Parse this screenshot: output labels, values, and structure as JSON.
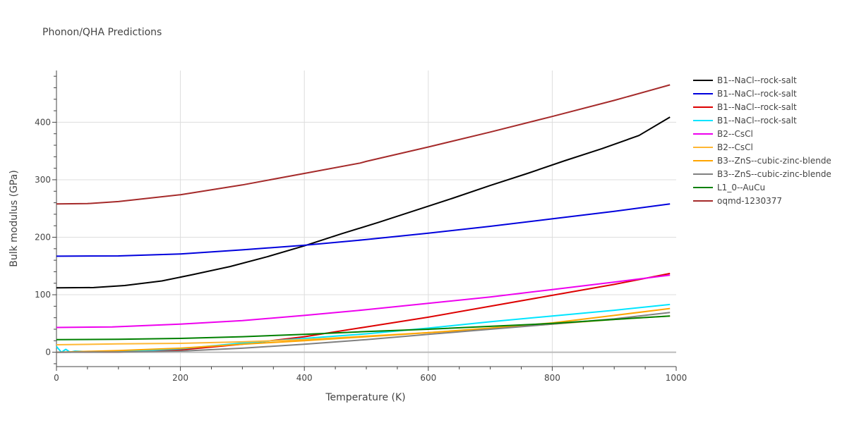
{
  "chart_data": {
    "type": "line",
    "title": "Phonon/QHA Predictions",
    "xlabel": "Temperature (K)",
    "ylabel": "Bulk modulus (GPa)",
    "xlim": [
      0,
      1000
    ],
    "ylim": [
      -25,
      490
    ],
    "xticks": [
      0,
      200,
      400,
      600,
      800,
      1000
    ],
    "yticks": [
      0,
      100,
      200,
      300,
      400
    ],
    "grid": true,
    "legend_position": "right",
    "series": [
      {
        "name": "B1--NaCl--rock-salt",
        "color": "#000000",
        "x": [
          0,
          60,
          110,
          170,
          220,
          280,
          340,
          400,
          460,
          520,
          580,
          640,
          700,
          760,
          820,
          880,
          940,
          990
        ],
        "y": [
          112,
          112.5,
          116,
          124,
          135,
          149,
          166,
          185,
          206,
          226,
          247,
          268,
          290,
          311,
          333,
          354,
          377,
          409
        ]
      },
      {
        "name": "B1--NaCl--rock-salt",
        "color": "#0000dd",
        "x": [
          0,
          100,
          200,
          300,
          400,
          500,
          600,
          700,
          800,
          900,
          990
        ],
        "y": [
          167,
          167.5,
          171,
          178,
          186,
          196,
          207,
          219,
          232,
          245,
          258
        ]
      },
      {
        "name": "B1--NaCl--rock-salt",
        "color": "#dd0000",
        "x": [
          0,
          100,
          200,
          300,
          400,
          500,
          600,
          700,
          800,
          900,
          990
        ],
        "y": [
          0,
          0.5,
          4,
          14,
          27,
          44,
          61,
          80,
          99,
          118,
          137
        ]
      },
      {
        "name": "B1--NaCl--rock-salt",
        "color": "#00e5ff",
        "x": [
          0,
          8,
          15,
          22,
          30,
          60,
          100,
          200,
          300,
          400,
          500,
          600,
          700,
          800,
          900,
          990
        ],
        "y": [
          10,
          0,
          5,
          0,
          2,
          0.5,
          1,
          6,
          16,
          24,
          32,
          42,
          53,
          63,
          73,
          83
        ]
      },
      {
        "name": "B2--CsCl",
        "color": "#ee00ee",
        "x": [
          0,
          90,
          200,
          300,
          400,
          500,
          600,
          700,
          800,
          900,
          990
        ],
        "y": [
          43,
          44,
          49,
          55,
          64,
          74,
          85,
          96,
          109,
          122,
          134
        ]
      },
      {
        "name": "B2--CsCl",
        "color": "#ffb733",
        "x": [
          0,
          100,
          200,
          300,
          400,
          500,
          600,
          700,
          800,
          900,
          990
        ],
        "y": [
          13,
          14.5,
          15.5,
          18,
          22,
          28,
          34,
          41,
          49,
          57,
          63
        ]
      },
      {
        "name": "B3--ZnS--cubic-zinc-blende",
        "color": "#ffa500",
        "x": [
          0,
          100,
          200,
          300,
          400,
          500,
          600,
          700,
          800,
          900,
          990
        ],
        "y": [
          0,
          3,
          7,
          14,
          20,
          27,
          34,
          42,
          51,
          64,
          76
        ]
      },
      {
        "name": "B3--ZnS--cubic-zinc-blende",
        "color": "#808080",
        "x": [
          0,
          100,
          200,
          300,
          400,
          500,
          600,
          700,
          800,
          900,
          990
        ],
        "y": [
          0,
          0.5,
          2,
          7,
          14,
          22,
          31,
          40,
          49,
          58,
          69
        ]
      },
      {
        "name": "L1_0--AuCu",
        "color": "#008000",
        "x": [
          0,
          100,
          200,
          300,
          400,
          500,
          600,
          700,
          800,
          900,
          990
        ],
        "y": [
          22,
          22.5,
          24,
          27,
          31,
          36,
          40,
          45,
          50,
          57,
          63
        ]
      },
      {
        "name": "oqmd-1230377",
        "color": "#a52a2a",
        "x": [
          0,
          50,
          100,
          200,
          300,
          400,
          490,
          500,
          600,
          700,
          800,
          900,
          990
        ],
        "y": [
          258,
          258.5,
          262,
          274,
          291,
          311,
          329,
          332,
          357,
          383,
          410,
          438,
          465
        ]
      }
    ]
  }
}
